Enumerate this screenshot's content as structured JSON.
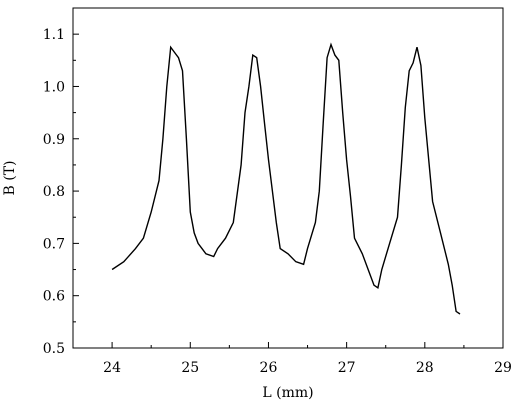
{
  "chart_data": {
    "type": "line",
    "title": "",
    "xlabel": "L (mm)",
    "ylabel": "B (T)",
    "xlim": [
      23.5,
      29
    ],
    "ylim": [
      0.5,
      1.15
    ],
    "xticks": [
      24,
      25,
      26,
      27,
      28,
      29
    ],
    "yticks": [
      0.5,
      0.6,
      0.7,
      0.8,
      0.9,
      1.0,
      1.1
    ],
    "xtick_labels": [
      "24",
      "25",
      "26",
      "27",
      "28",
      "29"
    ],
    "ytick_labels": [
      "0.5",
      "0.6",
      "0.7",
      "0.8",
      "0.9",
      "1.0",
      "1.1"
    ],
    "grid": false,
    "legend": "none",
    "line_color": "#000000",
    "series": [
      {
        "x": [
          24.0,
          24.15,
          24.3,
          24.4,
          24.5,
          24.6,
          24.65,
          24.7,
          24.75,
          24.8,
          24.85,
          24.9,
          24.95,
          25.0,
          25.05,
          25.1,
          25.15,
          25.2,
          25.3,
          25.35,
          25.45,
          25.55,
          25.65,
          25.7,
          25.75,
          25.8,
          25.85,
          25.9,
          25.95,
          26.0,
          26.05,
          26.1,
          26.15,
          26.25,
          26.35,
          26.45,
          26.5,
          26.6,
          26.65,
          26.7,
          26.75,
          26.8,
          26.85,
          26.9,
          26.95,
          27.0,
          27.05,
          27.1,
          27.2,
          27.3,
          27.35,
          27.4,
          27.45,
          27.55,
          27.65,
          27.7,
          27.75,
          27.8,
          27.85,
          27.9,
          27.95,
          28.0,
          28.1,
          28.2,
          28.3,
          28.35,
          28.4,
          28.45
        ],
        "y": [
          0.65,
          0.665,
          0.69,
          0.71,
          0.76,
          0.82,
          0.9,
          1.0,
          1.075,
          1.065,
          1.055,
          1.03,
          0.9,
          0.76,
          0.72,
          0.7,
          0.69,
          0.68,
          0.675,
          0.69,
          0.71,
          0.74,
          0.85,
          0.95,
          1.0,
          1.06,
          1.055,
          1.0,
          0.93,
          0.86,
          0.8,
          0.74,
          0.69,
          0.68,
          0.665,
          0.66,
          0.69,
          0.74,
          0.8,
          0.93,
          1.055,
          1.08,
          1.06,
          1.05,
          0.95,
          0.86,
          0.79,
          0.71,
          0.68,
          0.64,
          0.62,
          0.615,
          0.65,
          0.7,
          0.75,
          0.85,
          0.96,
          1.03,
          1.045,
          1.075,
          1.04,
          0.94,
          0.78,
          0.72,
          0.66,
          0.62,
          0.57,
          0.565
        ]
      }
    ]
  }
}
